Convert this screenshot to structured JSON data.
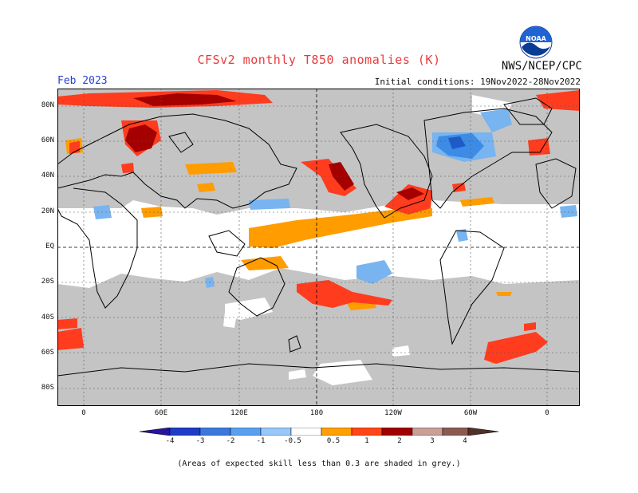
{
  "header": {
    "title": "CFSv2 monthly T850 anomalies (K)",
    "organization": "NWS/NCEP/CPC",
    "month": "Feb 2023",
    "initial_conditions": "Initial conditions: 19Nov2022-28Nov2022",
    "logo_text": "NOAA"
  },
  "map": {
    "latitude_labels": [
      "80N",
      "60N",
      "40N",
      "20N",
      "EQ",
      "20S",
      "40S",
      "60S",
      "80S"
    ],
    "longitude_labels": [
      "0",
      "60E",
      "120E",
      "180",
      "120W",
      "60W",
      "0"
    ],
    "colors": {
      "low_skill_grey": "#c4c4c4",
      "near_normal": "#ffffff",
      "warm_0_5_1": "#ff9c00",
      "warm_1_2": "#ff3c1e",
      "warm_2_3": "#a50000",
      "cool_m1_m0_5": "#78b4f0",
      "cool_m2_m1": "#3c8ce6",
      "cool_m3_m2": "#1e5ac8"
    }
  },
  "colorbar": {
    "labels": [
      "-4",
      "-3",
      "-2",
      "-1",
      "-0.5",
      "0.5",
      "1",
      "2",
      "3",
      "4"
    ],
    "colors": [
      "#2814a0",
      "#1e3cc8",
      "#3c78dc",
      "#5aa0f0",
      "#96c8fa",
      "#ffffff",
      "#ffa000",
      "#ff4614",
      "#a00000",
      "#c8a098",
      "#8c5a50",
      "#503028"
    ]
  },
  "footer": {
    "note": "(Areas of expected skill less than 0.3 are shaded in grey.)"
  }
}
